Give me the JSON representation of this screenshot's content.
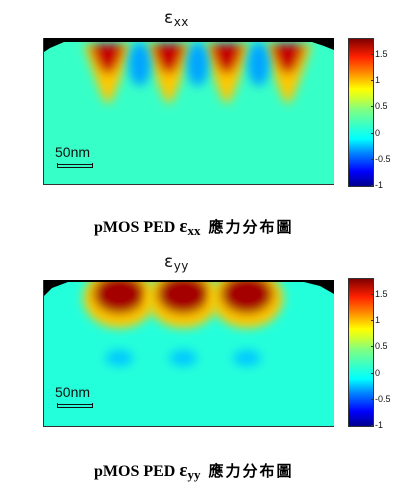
{
  "chart_data": [
    {
      "type": "heatmap",
      "title": "εxx",
      "title_symbol": "ε",
      "title_sub": "xx",
      "scale_bar": "50nm",
      "colorbar": {
        "ticks": [
          1.5,
          1,
          0.5,
          0,
          -0.5,
          -1
        ],
        "tick_labels": [
          "1.5",
          "1",
          "0.5",
          "0",
          "-0.5",
          "-1"
        ],
        "range": [
          -1,
          1.8
        ],
        "colormap": "jet"
      },
      "background_value": 0.2,
      "hotspots": [
        {
          "center": 0.22,
          "value": 1.6,
          "kind": "tensile"
        },
        {
          "center": 0.43,
          "value": 1.6,
          "kind": "tensile"
        },
        {
          "center": 0.63,
          "value": 1.6,
          "kind": "tensile"
        },
        {
          "center": 0.84,
          "value": 1.6,
          "kind": "tensile"
        },
        {
          "center": 0.33,
          "value": -0.2,
          "kind": "compressive"
        },
        {
          "center": 0.53,
          "value": -0.2,
          "kind": "compressive"
        },
        {
          "center": 0.74,
          "value": -0.2,
          "kind": "compressive"
        }
      ],
      "caption": {
        "prefix": "pMOS PED ",
        "symbol": "ε",
        "sub": "xx",
        "suffix": "應力分布圖"
      }
    },
    {
      "type": "heatmap",
      "title": "εyy",
      "title_symbol": "ε",
      "title_sub": "yy",
      "scale_bar": "50nm",
      "colorbar": {
        "ticks": [
          1.5,
          1,
          0.5,
          0,
          -0.5,
          -1
        ],
        "tick_labels": [
          "1.5",
          "1",
          "0.5",
          "0",
          "-0.5",
          "-1"
        ],
        "range": [
          -1,
          1.8
        ],
        "colormap": "jet"
      },
      "background_value": 0.15,
      "hotspots": [
        {
          "center": 0.26,
          "value": 1.7,
          "kind": "tensile"
        },
        {
          "center": 0.48,
          "value": 1.7,
          "kind": "tensile"
        },
        {
          "center": 0.7,
          "value": 1.7,
          "kind": "tensile"
        },
        {
          "center": 0.26,
          "value": -0.1,
          "kind": "compressive"
        },
        {
          "center": 0.48,
          "value": -0.1,
          "kind": "compressive"
        },
        {
          "center": 0.7,
          "value": -0.1,
          "kind": "compressive"
        }
      ],
      "caption": {
        "prefix": "pMOS PED ",
        "symbol": "ε",
        "sub": "yy",
        "suffix": "應力分布圖"
      }
    }
  ]
}
